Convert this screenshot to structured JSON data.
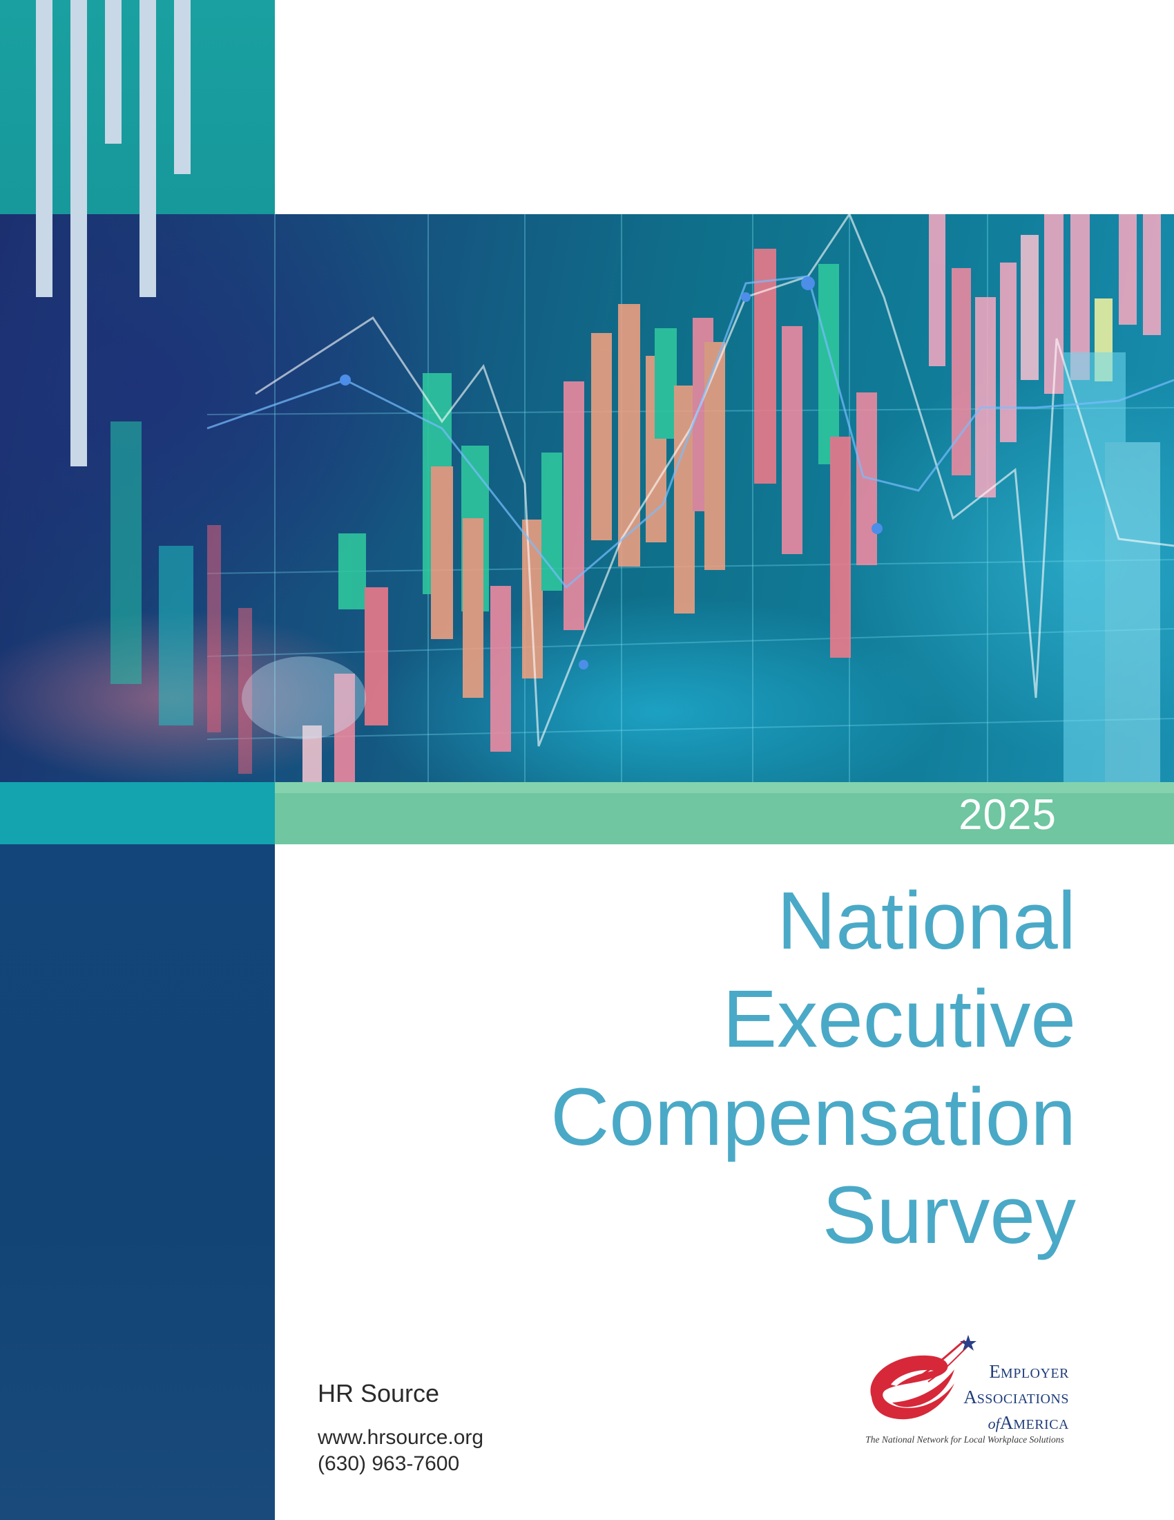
{
  "cover": {
    "year": "2025",
    "title_lines": [
      "National",
      "Executive",
      "Compensation",
      "Survey"
    ]
  },
  "publisher": {
    "name": "HR Source",
    "website": "www.hrsource.org",
    "phone": "(630) 963-7600"
  },
  "logo": {
    "line1_cap": "E",
    "line1_rest": "MPLOYER",
    "line2_cap": "A",
    "line2_rest": "SSOCIATIONS",
    "line3_prefix": "of",
    "line3_cap": "A",
    "line3_rest": "MERICA",
    "tagline": "The National Network for Local Workplace Solutions"
  },
  "colors": {
    "title": "#4aa9c7",
    "navy": "#13457a",
    "teal": "#13a4b0",
    "green": "#6fc6a0",
    "logo_red": "#d62839",
    "logo_blue": "#1f3d7a"
  }
}
